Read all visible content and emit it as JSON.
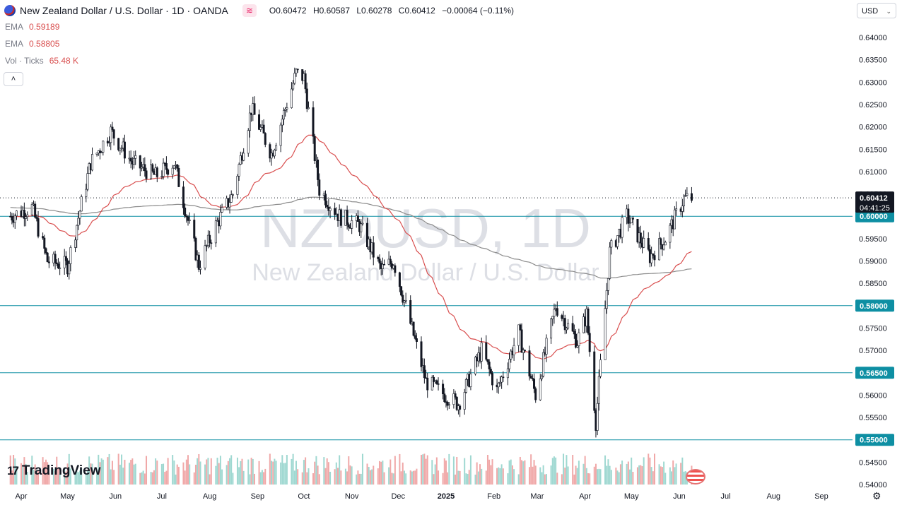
{
  "header": {
    "title": "New Zealand Dollar / U.S. Dollar · 1D · OANDA",
    "open_label": "O",
    "open": "0.60472",
    "high_label": "H",
    "high": "0.60587",
    "low_label": "L",
    "low": "0.60278",
    "close_label": "C",
    "close": "0.60412",
    "change": "−0.00064 (−0.11%)",
    "indicator_badge": "≋"
  },
  "legend": {
    "ema1_label": "EMA",
    "ema1_value": "0.59189",
    "ema2_label": "EMA",
    "ema2_value": "0.58805",
    "vol_label": "Vol · Ticks",
    "vol_value": "65.48 K",
    "collapse": "˄"
  },
  "currency": {
    "label": "USD",
    "chevron": "⌄"
  },
  "watermark": {
    "symbol": "NZDUSD, 1D",
    "name": "New Zealand Dollar / U.S. Dollar"
  },
  "logo": {
    "mark": "17",
    "text": "TradingView"
  },
  "icons": {
    "settings": "gear-icon",
    "flag": "nz-flag-icon",
    "event": "us-flag-icon"
  },
  "colors": {
    "up": "#ffffff",
    "down": "#131722",
    "ema_fast": "#d94f4f",
    "ema_slow": "#8c8c8c",
    "hline": "#0e8fa3",
    "price_label_bg": "#1848cc",
    "hline_label_bg": "#0e8fa3",
    "vol_up": "#9fd8d1",
    "vol_down": "#f0a8a8"
  },
  "chart_data": {
    "type": "candlestick",
    "symbol": "NZDUSD",
    "interval": "1D",
    "ylim": [
      0.54,
      0.6433
    ],
    "y_ticks": [
      "0.64000",
      "0.63500",
      "0.63000",
      "0.62500",
      "0.62000",
      "0.61500",
      "0.61000",
      "0.60500",
      "0.60000",
      "0.59500",
      "0.59000",
      "0.58500",
      "0.58000",
      "0.57500",
      "0.57000",
      "0.56500",
      "0.56000",
      "0.55500",
      "0.55000",
      "0.54500",
      "0.54000"
    ],
    "x_ticks": [
      "Apr",
      "May",
      "Jun",
      "Jul",
      "Aug",
      "Sep",
      "Oct",
      "Nov",
      "Dec",
      "2025",
      "Feb",
      "Mar",
      "Apr",
      "May",
      "Jun",
      "Jul",
      "Aug",
      "Sep"
    ],
    "last_price": "0.60412",
    "countdown": "04:41:25",
    "horizontal_levels": [
      "0.60000",
      "0.58000",
      "0.56500",
      "0.55000"
    ],
    "close_series": [
      {
        "x": "2024-03-25",
        "y": 0.6
      },
      {
        "x": "2024-04-08",
        "y": 0.602
      },
      {
        "x": "2024-04-18",
        "y": 0.59
      },
      {
        "x": "2024-05-01",
        "y": 0.589
      },
      {
        "x": "2024-05-16",
        "y": 0.612
      },
      {
        "x": "2024-05-29",
        "y": 0.619
      },
      {
        "x": "2024-06-12",
        "y": 0.612
      },
      {
        "x": "2024-06-27",
        "y": 0.609
      },
      {
        "x": "2024-07-09",
        "y": 0.612
      },
      {
        "x": "2024-07-25",
        "y": 0.589
      },
      {
        "x": "2024-08-05",
        "y": 0.598
      },
      {
        "x": "2024-08-16",
        "y": 0.605
      },
      {
        "x": "2024-08-28",
        "y": 0.624
      },
      {
        "x": "2024-09-10",
        "y": 0.614
      },
      {
        "x": "2024-09-26",
        "y": 0.632
      },
      {
        "x": "2024-10-01",
        "y": 0.631
      },
      {
        "x": "2024-10-11",
        "y": 0.606
      },
      {
        "x": "2024-10-24",
        "y": 0.6
      },
      {
        "x": "2024-11-06",
        "y": 0.598
      },
      {
        "x": "2024-11-20",
        "y": 0.588
      },
      {
        "x": "2024-11-28",
        "y": 0.59
      },
      {
        "x": "2024-12-09",
        "y": 0.576
      },
      {
        "x": "2024-12-19",
        "y": 0.563
      },
      {
        "x": "2025-01-09",
        "y": 0.558
      },
      {
        "x": "2025-01-24",
        "y": 0.57
      },
      {
        "x": "2025-02-03",
        "y": 0.561
      },
      {
        "x": "2025-02-17",
        "y": 0.574
      },
      {
        "x": "2025-02-28",
        "y": 0.56
      },
      {
        "x": "2025-03-13",
        "y": 0.58
      },
      {
        "x": "2025-03-27",
        "y": 0.572
      },
      {
        "x": "2025-04-02",
        "y": 0.578
      },
      {
        "x": "2025-04-08",
        "y": 0.554
      },
      {
        "x": "2025-04-17",
        "y": 0.592
      },
      {
        "x": "2025-04-28",
        "y": 0.6
      },
      {
        "x": "2025-05-13",
        "y": 0.591
      },
      {
        "x": "2025-05-23",
        "y": 0.595
      },
      {
        "x": "2025-06-04",
        "y": 0.604
      },
      {
        "x": "2025-06-09",
        "y": 0.604
      }
    ],
    "ema_fast": {
      "label": "EMA",
      "value": 0.59189
    },
    "ema_slow": {
      "label": "EMA",
      "value": 0.58805
    },
    "volume": {
      "label": "Vol · Ticks",
      "last": "65.48 K"
    }
  }
}
